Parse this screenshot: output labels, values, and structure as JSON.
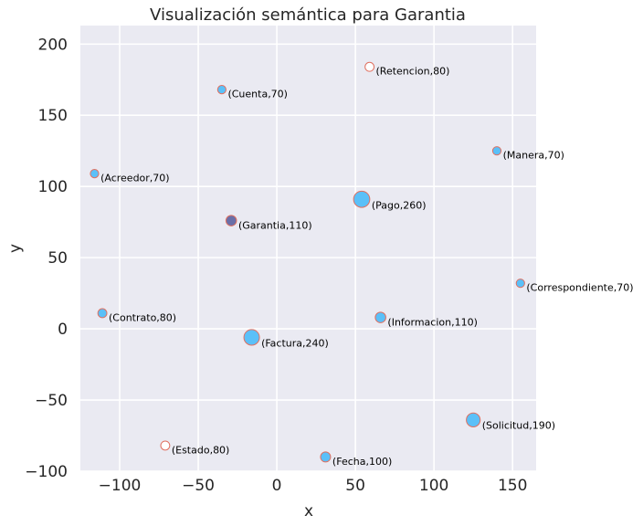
{
  "chart_data": {
    "type": "scatter",
    "title": "Visualización semántica para Garantia",
    "xlabel": "x",
    "ylabel": "y",
    "xlim": [
      -125,
      165
    ],
    "ylim": [
      -100,
      213
    ],
    "xticks": [
      -100,
      -50,
      0,
      50,
      100,
      150
    ],
    "yticks": [
      -100,
      -50,
      0,
      50,
      100,
      150,
      200
    ],
    "xtick_labels": [
      "−100",
      "−50",
      "0",
      "50",
      "100",
      "150"
    ],
    "ytick_labels": [
      "−100",
      "−50",
      "0",
      "50",
      "100",
      "150",
      "200"
    ],
    "grid": true,
    "colors": {
      "background": "#eaeaf2",
      "grid": "#ffffff",
      "fill": "#5bc0f8",
      "edge": "#e07060",
      "highlight_fill": "#6a6fa8",
      "hollow_fill": "#ffffff"
    },
    "points": [
      {
        "word": "Retencion",
        "x": 59,
        "y": 184,
        "weight": 80,
        "label": "(Retencion,80)",
        "style": "hollow"
      },
      {
        "word": "Cuenta",
        "x": -35,
        "y": 168,
        "weight": 70,
        "label": "(Cuenta,70)",
        "style": "filled"
      },
      {
        "word": "Manera",
        "x": 140,
        "y": 125,
        "weight": 70,
        "label": "(Manera,70)",
        "style": "filled"
      },
      {
        "word": "Acreedor",
        "x": -116,
        "y": 109,
        "weight": 70,
        "label": "(Acreedor,70)",
        "style": "filled"
      },
      {
        "word": "Pago",
        "x": 54,
        "y": 91,
        "weight": 260,
        "label": "(Pago,260)",
        "style": "filled"
      },
      {
        "word": "Garantia",
        "x": -29,
        "y": 76,
        "weight": 110,
        "label": "(Garantia,110)",
        "style": "highlight"
      },
      {
        "word": "Correspondiente",
        "x": 155,
        "y": 32,
        "weight": 70,
        "label": "(Correspondiente,70)",
        "style": "filled"
      },
      {
        "word": "Contrato",
        "x": -111,
        "y": 11,
        "weight": 80,
        "label": "(Contrato,80)",
        "style": "filled"
      },
      {
        "word": "Informacion",
        "x": 66,
        "y": 8,
        "weight": 110,
        "label": "(Informacion,110)",
        "style": "filled"
      },
      {
        "word": "Factura",
        "x": -16,
        "y": -6,
        "weight": 240,
        "label": "(Factura,240)",
        "style": "filled"
      },
      {
        "word": "Solicitud",
        "x": 125,
        "y": -64,
        "weight": 190,
        "label": "(Solicitud,190)",
        "style": "filled"
      },
      {
        "word": "Estado",
        "x": -71,
        "y": -82,
        "weight": 80,
        "label": "(Estado,80)",
        "style": "hollow"
      },
      {
        "word": "Fecha",
        "x": 31,
        "y": -90,
        "weight": 100,
        "label": "(Fecha,100)",
        "style": "filled"
      }
    ]
  }
}
